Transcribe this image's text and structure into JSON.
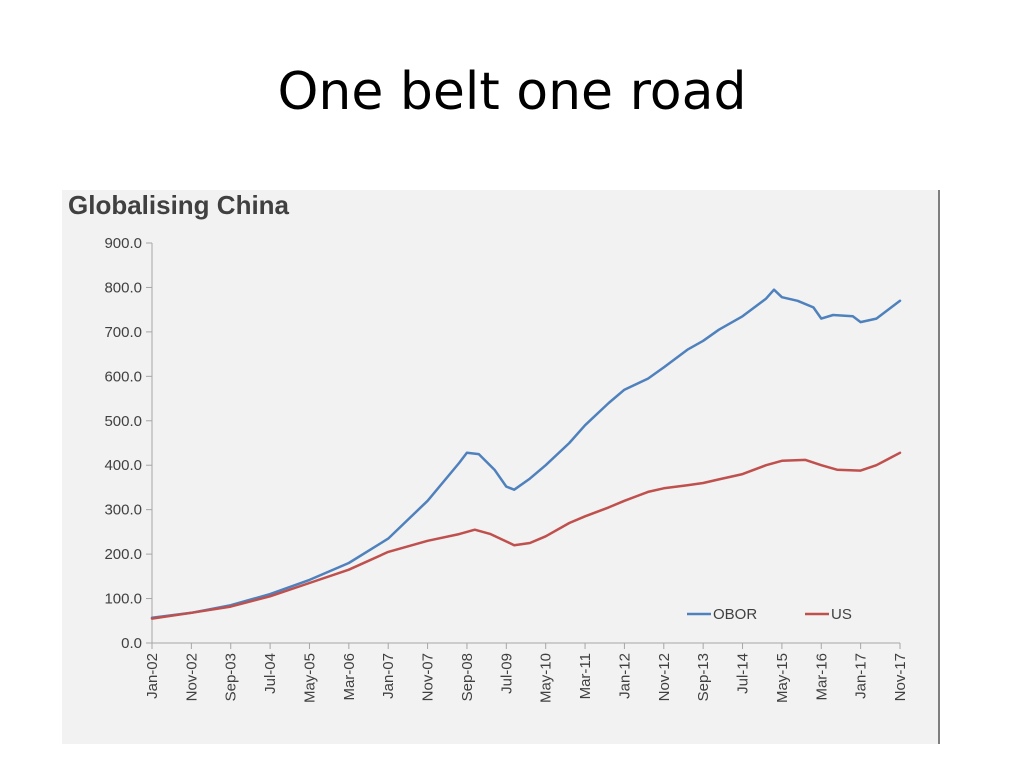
{
  "slide": {
    "title": "One belt one road"
  },
  "colors": {
    "obor": "#4f81bd",
    "us": "#c0504d",
    "axis": "#a6a6a6",
    "text": "#404040",
    "panel": "#f2f2f2"
  },
  "chart_data": {
    "type": "line",
    "title": "Globalising China",
    "xlabel": "",
    "ylabel": "",
    "ylim": [
      0,
      900
    ],
    "yticks": [
      "0.0",
      "100.0",
      "200.0",
      "300.0",
      "400.0",
      "500.0",
      "600.0",
      "700.0",
      "800.0",
      "900.0"
    ],
    "xlim": [
      "2002-01",
      "2017-11"
    ],
    "xticks": [
      "Jan-02",
      "Nov-02",
      "Sep-03",
      "Jul-04",
      "May-05",
      "Mar-06",
      "Jan-07",
      "Nov-07",
      "Sep-08",
      "Jul-09",
      "May-10",
      "Mar-11",
      "Jan-12",
      "Nov-12",
      "Sep-13",
      "Jul-14",
      "May-15",
      "Mar-16",
      "Jan-17",
      "Nov-17"
    ],
    "grid": false,
    "legend": "bottom-right",
    "series": [
      {
        "name": "OBOR",
        "color": "#4f81bd",
        "points": [
          [
            "2002-01",
            57
          ],
          [
            "2002-11",
            68
          ],
          [
            "2003-09",
            85
          ],
          [
            "2004-07",
            110
          ],
          [
            "2005-05",
            142
          ],
          [
            "2006-03",
            180
          ],
          [
            "2007-01",
            235
          ],
          [
            "2007-11",
            320
          ],
          [
            "2008-07",
            405
          ],
          [
            "2008-09",
            428
          ],
          [
            "2008-12",
            425
          ],
          [
            "2009-04",
            390
          ],
          [
            "2009-07",
            352
          ],
          [
            "2009-09",
            345
          ],
          [
            "2010-01",
            370
          ],
          [
            "2010-05",
            400
          ],
          [
            "2010-11",
            450
          ],
          [
            "2011-03",
            490
          ],
          [
            "2011-09",
            540
          ],
          [
            "2012-01",
            570
          ],
          [
            "2012-07",
            595
          ],
          [
            "2012-11",
            620
          ],
          [
            "2013-05",
            660
          ],
          [
            "2013-09",
            680
          ],
          [
            "2014-01",
            705
          ],
          [
            "2014-07",
            735
          ],
          [
            "2015-01",
            775
          ],
          [
            "2015-03",
            795
          ],
          [
            "2015-05",
            778
          ],
          [
            "2015-09",
            770
          ],
          [
            "2016-01",
            755
          ],
          [
            "2016-03",
            730
          ],
          [
            "2016-06",
            738
          ],
          [
            "2016-11",
            735
          ],
          [
            "2017-01",
            722
          ],
          [
            "2017-05",
            730
          ],
          [
            "2017-11",
            770
          ]
        ]
      },
      {
        "name": "US",
        "color": "#c0504d",
        "points": [
          [
            "2002-01",
            55
          ],
          [
            "2002-11",
            68
          ],
          [
            "2003-09",
            82
          ],
          [
            "2004-07",
            105
          ],
          [
            "2005-05",
            135
          ],
          [
            "2006-03",
            165
          ],
          [
            "2007-01",
            205
          ],
          [
            "2007-11",
            230
          ],
          [
            "2008-07",
            245
          ],
          [
            "2008-11",
            255
          ],
          [
            "2009-03",
            245
          ],
          [
            "2009-09",
            220
          ],
          [
            "2010-01",
            225
          ],
          [
            "2010-05",
            240
          ],
          [
            "2010-11",
            270
          ],
          [
            "2011-03",
            285
          ],
          [
            "2011-09",
            305
          ],
          [
            "2012-01",
            320
          ],
          [
            "2012-07",
            340
          ],
          [
            "2012-11",
            348
          ],
          [
            "2013-05",
            355
          ],
          [
            "2013-09",
            360
          ],
          [
            "2014-01",
            368
          ],
          [
            "2014-07",
            380
          ],
          [
            "2015-01",
            400
          ],
          [
            "2015-05",
            410
          ],
          [
            "2015-11",
            412
          ],
          [
            "2016-03",
            400
          ],
          [
            "2016-07",
            390
          ],
          [
            "2017-01",
            388
          ],
          [
            "2017-05",
            400
          ],
          [
            "2017-11",
            428
          ]
        ]
      }
    ]
  }
}
